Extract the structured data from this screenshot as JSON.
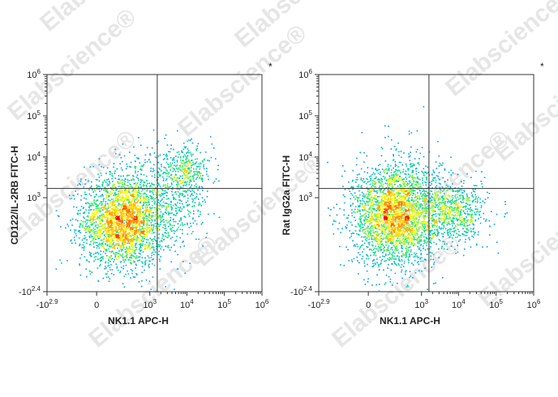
{
  "watermark": {
    "text": "Elabscience",
    "reg": "®"
  },
  "chart_data": [
    {
      "type": "scatter",
      "style": "density-dot-plot",
      "xlabel": "NK1.1 APC-H",
      "ylabel": "CD122/IL-2RB FITC-H",
      "corner_mark": "*",
      "x_scale": "biexponential",
      "y_scale": "biexponential",
      "xlim": [
        -794,
        1000000
      ],
      "ylim": [
        -251,
        1000000
      ],
      "x_ticks": [
        {
          "base": "-10",
          "exp": "2.9"
        },
        {
          "base": "0",
          "exp": ""
        },
        {
          "base": "10",
          "exp": "3"
        },
        {
          "base": "10",
          "exp": "4"
        },
        {
          "base": "10",
          "exp": "5"
        },
        {
          "base": "10",
          "exp": "6"
        }
      ],
      "y_ticks": [
        {
          "base": "-10",
          "exp": "2.4"
        },
        {
          "base": "10",
          "exp": "3"
        },
        {
          "base": "10",
          "exp": "4"
        },
        {
          "base": "10",
          "exp": "5"
        },
        {
          "base": "10",
          "exp": "6"
        }
      ],
      "gate": {
        "x": 1600,
        "y": 1700
      },
      "populations": [
        {
          "name": "",
          "x": 150,
          "y": 250,
          "spread_x": 0.55,
          "spread_y": 0.55,
          "count": 2600,
          "density": "high"
        },
        {
          "name": "",
          "x": 9500,
          "y": 4500,
          "spread_x": 0.35,
          "spread_y": 0.3,
          "count": 320,
          "density": "medium"
        },
        {
          "name": "",
          "x": 3500,
          "y": 700,
          "spread_x": 0.5,
          "spread_y": 0.6,
          "count": 420,
          "density": "low"
        },
        {
          "name": "",
          "x": 400,
          "y": 4000,
          "spread_x": 0.55,
          "spread_y": 0.45,
          "count": 90,
          "density": "low"
        }
      ],
      "colormap": [
        "#1e1eff",
        "#00a0ff",
        "#00e080",
        "#ffff00",
        "#ff8000",
        "#ff0000"
      ]
    },
    {
      "type": "scatter",
      "style": "density-dot-plot",
      "xlabel": "NK1.1 APC-H",
      "ylabel": "Rat IgG2a FITC-H",
      "corner_mark": "*",
      "x_scale": "biexponential",
      "y_scale": "biexponential",
      "xlim": [
        -794,
        1000000
      ],
      "ylim": [
        -251,
        1000000
      ],
      "x_ticks": [
        {
          "base": "-10",
          "exp": "2.9"
        },
        {
          "base": "0",
          "exp": ""
        },
        {
          "base": "10",
          "exp": "3"
        },
        {
          "base": "10",
          "exp": "4"
        },
        {
          "base": "10",
          "exp": "5"
        },
        {
          "base": "10",
          "exp": "6"
        }
      ],
      "y_ticks": [
        {
          "base": "-10",
          "exp": "2.4"
        },
        {
          "base": "10",
          "exp": "3"
        },
        {
          "base": "10",
          "exp": "4"
        },
        {
          "base": "10",
          "exp": "5"
        },
        {
          "base": "10",
          "exp": "6"
        }
      ],
      "gate": {
        "x": 1600,
        "y": 1700
      },
      "populations": [
        {
          "name": "",
          "x": 150,
          "y": 350,
          "spread_x": 0.55,
          "spread_y": 0.6,
          "count": 2700,
          "density": "high"
        },
        {
          "name": "",
          "x": 9000,
          "y": 450,
          "spread_x": 0.4,
          "spread_y": 0.35,
          "count": 520,
          "density": "medium"
        },
        {
          "name": "",
          "x": 2500,
          "y": 400,
          "spread_x": 0.45,
          "spread_y": 0.45,
          "count": 300,
          "density": "low"
        },
        {
          "name": "",
          "x": 400,
          "y": 4500,
          "spread_x": 0.45,
          "spread_y": 0.5,
          "count": 110,
          "density": "low"
        }
      ],
      "colormap": [
        "#1e1eff",
        "#00a0ff",
        "#00e080",
        "#ffff00",
        "#ff8000",
        "#ff0000"
      ]
    }
  ]
}
